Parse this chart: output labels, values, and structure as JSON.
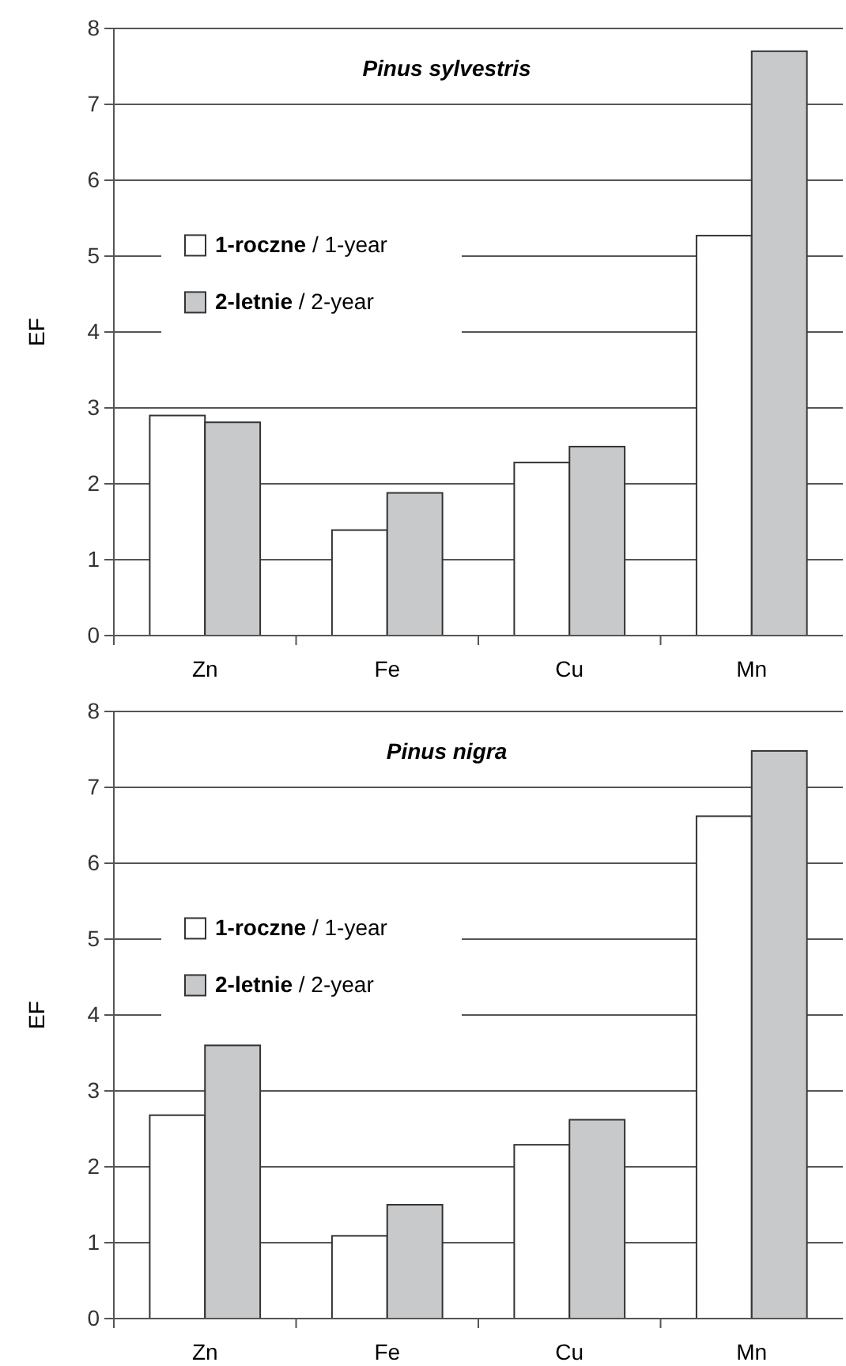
{
  "chart_data": [
    {
      "type": "bar",
      "title": "Pinus sylvestris",
      "ylabel": "EF",
      "categories": [
        "Zn",
        "Fe",
        "Cu",
        "Mn"
      ],
      "series": [
        {
          "name": "1-roczne / 1-year",
          "color": "#ffffff",
          "values": [
            2.9,
            1.39,
            2.28,
            5.27
          ]
        },
        {
          "name": "2-letnie / 2-year",
          "color": "#c8c9cb",
          "values": [
            2.81,
            1.88,
            2.49,
            7.7
          ]
        }
      ],
      "ylim": [
        0,
        8
      ],
      "yticks": [
        0,
        1,
        2,
        3,
        4,
        5,
        6,
        7,
        8
      ],
      "grid": "y",
      "legend": "left"
    },
    {
      "type": "bar",
      "title": "Pinus nigra",
      "ylabel": "EF",
      "categories": [
        "Zn",
        "Fe",
        "Cu",
        "Mn"
      ],
      "series": [
        {
          "name": "1-roczne / 1-year",
          "color": "#ffffff",
          "values": [
            2.68,
            1.09,
            2.29,
            6.62
          ]
        },
        {
          "name": "2-letnie / 2-year",
          "color": "#c8c9cb",
          "values": [
            3.6,
            1.5,
            2.62,
            7.48
          ]
        }
      ],
      "ylim": [
        0,
        8
      ],
      "yticks": [
        0,
        1,
        2,
        3,
        4,
        5,
        6,
        7,
        8
      ],
      "grid": "y",
      "legend": "left"
    }
  ]
}
